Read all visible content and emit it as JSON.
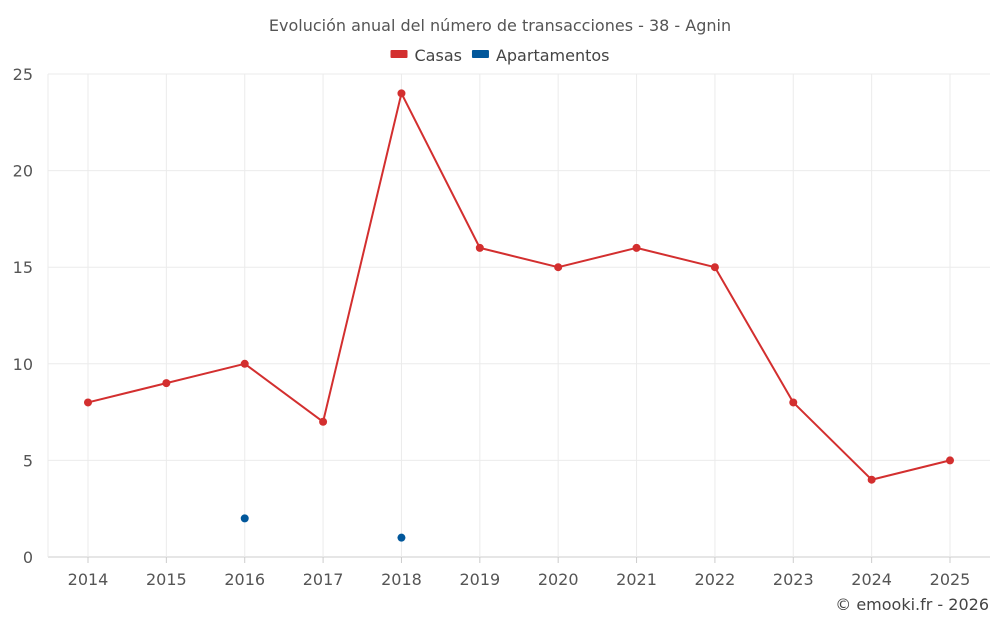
{
  "chart_data": {
    "type": "line",
    "title": "Evolución anual del número de transacciones - 38 - Agnin",
    "categories": [
      "2014",
      "2015",
      "2016",
      "2017",
      "2018",
      "2019",
      "2020",
      "2021",
      "2022",
      "2023",
      "2024",
      "2025"
    ],
    "series": [
      {
        "name": "Casas",
        "color": "#d32f2f",
        "values": [
          8,
          9,
          10,
          7,
          24,
          16,
          15,
          16,
          15,
          8,
          4,
          5
        ]
      },
      {
        "name": "Apartamentos",
        "color": "#01579b",
        "values": [
          null,
          null,
          2,
          null,
          1,
          null,
          null,
          null,
          null,
          null,
          null,
          null
        ]
      }
    ],
    "ylim": [
      0,
      25
    ],
    "yticks": [
      0,
      5,
      10,
      15,
      20,
      25
    ],
    "xlabel": "",
    "ylabel": "",
    "grid": true,
    "legend_position": "top-center"
  },
  "footer": {
    "credit": "© emooki.fr - 2026"
  }
}
